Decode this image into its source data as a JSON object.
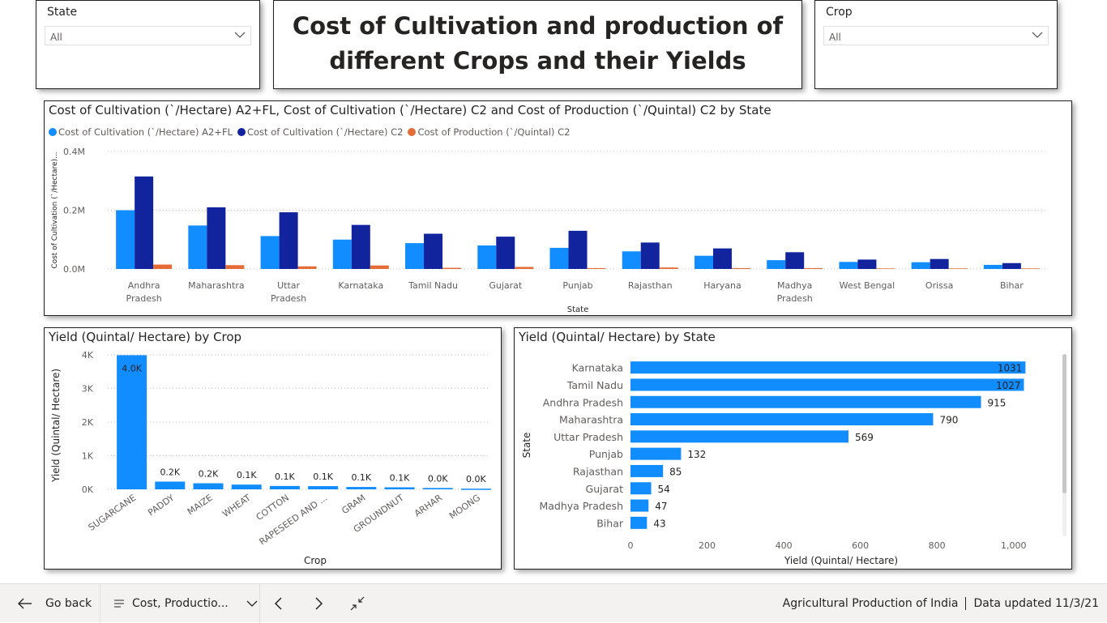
{
  "slicers": {
    "state": {
      "title": "State",
      "value": "All"
    },
    "crop": {
      "title": "Crop",
      "value": "All"
    }
  },
  "title": {
    "line1": "Cost of Cultivation and production of",
    "line2": "different Crops and their Yields"
  },
  "chart_data": [
    {
      "type": "bar",
      "title": "Cost of Cultivation (`/Hectare) A2+FL, Cost of Cultivation (`/Hectare) C2 and Cost of Production (`/Quintal) C2 by State",
      "xlabel": "State",
      "ylabel": "Cost of Cultivation (`/Hectare)...",
      "legend_position": "top-left",
      "ylim": [
        0,
        400000
      ],
      "yticks": [
        "0.0M",
        "0.2M",
        "0.4M"
      ],
      "categories": [
        "Andhra Pradesh",
        "Maharashtra",
        "Uttar Pradesh",
        "Karnataka",
        "Tamil Nadu",
        "Gujarat",
        "Punjab",
        "Rajasthan",
        "Haryana",
        "Madhya Pradesh",
        "West Bengal",
        "Orissa",
        "Bihar"
      ],
      "series": [
        {
          "name": "Cost of Cultivation (`/Hectare) A2+FL",
          "color": "#118dff",
          "values": [
            200000,
            148000,
            112000,
            100000,
            88000,
            80000,
            72000,
            60000,
            45000,
            30000,
            24000,
            23000,
            14000
          ]
        },
        {
          "name": "Cost of Cultivation (`/Hectare) C2",
          "color": "#12239e",
          "values": [
            315000,
            210000,
            193000,
            150000,
            120000,
            110000,
            130000,
            90000,
            70000,
            57000,
            32000,
            34000,
            20000
          ]
        },
        {
          "name": "Cost of Production (`/Quintal) C2",
          "color": "#e66c37",
          "values": [
            15000,
            13000,
            9000,
            12000,
            4000,
            7000,
            3000,
            5000,
            3000,
            3000,
            2000,
            2000,
            2000
          ]
        }
      ]
    },
    {
      "type": "bar",
      "title": "Yield (Quintal/ Hectare) by Crop",
      "xlabel": "Crop",
      "ylabel": "Yield (Quintal/ Hectare)",
      "ylim": [
        0,
        4000
      ],
      "yticks": [
        "0K",
        "1K",
        "2K",
        "3K",
        "4K"
      ],
      "categories": [
        "SUGARCANE",
        "PADDY",
        "MAIZE",
        "WHEAT",
        "COTTON",
        "RAPESEED AND ...",
        "GRAM",
        "GROUNDNUT",
        "ARHAR",
        "MOONG"
      ],
      "values": [
        3990,
        230,
        180,
        140,
        100,
        95,
        70,
        60,
        40,
        20
      ],
      "data_labels": [
        "4.0K",
        "0.2K",
        "0.2K",
        "0.1K",
        "0.1K",
        "0.1K",
        "0.1K",
        "0.1K",
        "0.0K",
        "0.0K"
      ],
      "color": "#118dff"
    },
    {
      "type": "bar",
      "orientation": "horizontal",
      "title": "Yield (Quintal/ Hectare) by State",
      "xlabel": "Yield (Quintal/ Hectare)",
      "ylabel": "State",
      "xlim": [
        0,
        1100
      ],
      "xticks": [
        "0",
        "200",
        "400",
        "600",
        "800",
        "1,000"
      ],
      "categories": [
        "Karnataka",
        "Tamil Nadu",
        "Andhra Pradesh",
        "Maharashtra",
        "Uttar Pradesh",
        "Punjab",
        "Rajasthan",
        "Gujarat",
        "Madhya Pradesh",
        "Bihar"
      ],
      "values": [
        1031,
        1027,
        915,
        790,
        569,
        132,
        85,
        54,
        47,
        43
      ],
      "data_labels": [
        "1031",
        "1027",
        "915",
        "790",
        "569",
        "132",
        "85",
        "54",
        "47",
        "43"
      ],
      "color": "#118dff"
    }
  ],
  "footer": {
    "go_back": "Go back",
    "page_name": "Cost, Productio...",
    "report_name": "Agricultural Production of India",
    "updated": "Data updated 11/3/21"
  }
}
